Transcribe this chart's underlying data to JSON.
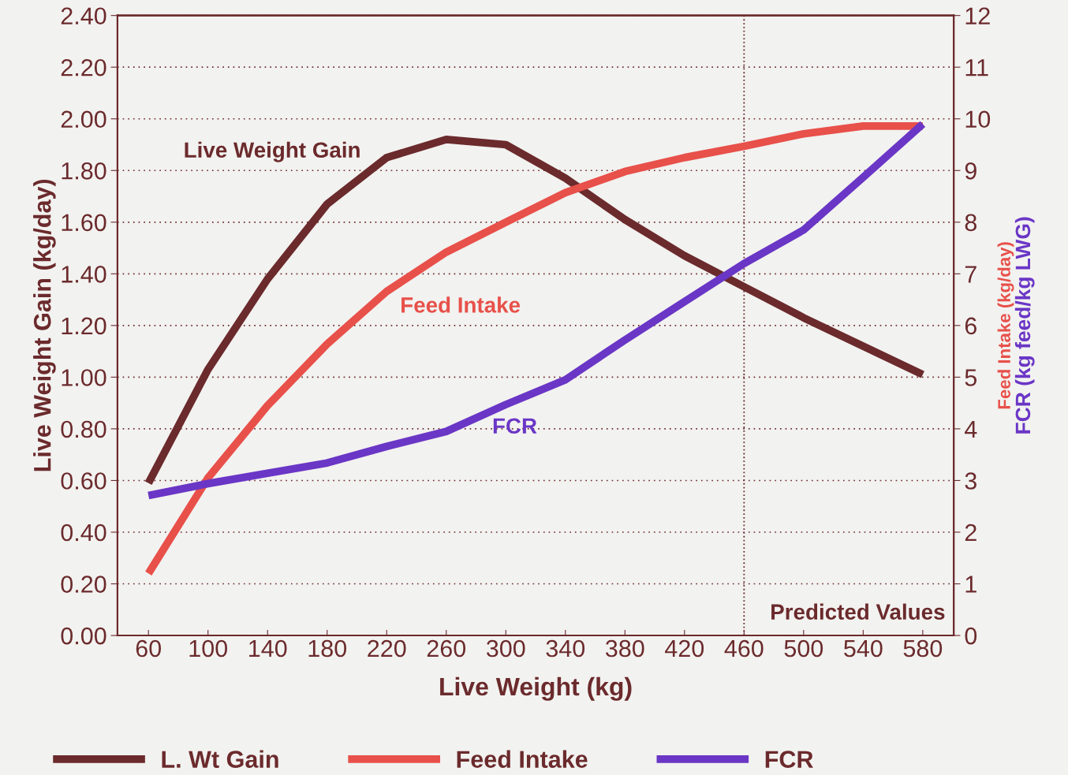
{
  "chart_data": {
    "type": "line",
    "xlabel": "Live Weight (kg)",
    "ylabel": "Live Weight Gain (kg/day)",
    "y2label": "Feed Intake (kg/day)",
    "categories": [
      "60",
      "100",
      "140",
      "180",
      "220",
      "260",
      "300",
      "340",
      "380",
      "420",
      "460",
      "500",
      "540",
      "580"
    ],
    "series": [
      {
        "name": "L. Wt Gain",
        "color": "#6b2a2c",
        "values": [
          0.59,
          1.03,
          1.38,
          1.67,
          1.85,
          1.92,
          1.9,
          1.77,
          1.61,
          1.47,
          1.35,
          1.23,
          1.12,
          1.01
        ]
      },
      {
        "name": "Feed Intake",
        "color": "#e8504a",
        "axis": "y2",
        "values": [
          1.2,
          3.05,
          4.45,
          5.64,
          6.66,
          7.42,
          8.0,
          8.57,
          8.98,
          9.25,
          9.47,
          9.71,
          9.86,
          9.86
        ]
      },
      {
        "name": "FCR",
        "color": "#6a36c6",
        "axis": "y2",
        "values": [
          2.71,
          2.94,
          3.14,
          3.34,
          3.66,
          3.95,
          4.47,
          4.95,
          5.72,
          6.46,
          7.2,
          7.85,
          8.87,
          9.9
        ]
      }
    ],
    "ylim": [
      0,
      2.4
    ],
    "yticks": [
      {
        "value": 0,
        "label": "0.00"
      },
      {
        "value": 0.2,
        "label": "0.20"
      },
      {
        "value": 0.4,
        "label": "0.40"
      },
      {
        "value": 0.6,
        "label": "0.60"
      },
      {
        "value": 0.8,
        "label": "0.80"
      },
      {
        "value": 1,
        "label": "1.00"
      },
      {
        "value": 1.2,
        "label": "1.20"
      },
      {
        "value": 1.4,
        "label": "1.40"
      },
      {
        "value": 1.6,
        "label": "1.60"
      },
      {
        "value": 1.8,
        "label": "1.80"
      },
      {
        "value": 2,
        "label": "2.00"
      },
      {
        "value": 2.2,
        "label": "2.20"
      },
      {
        "value": 2.4,
        "label": "2.40"
      }
    ],
    "y2lim": [
      0,
      12
    ],
    "y2ticks": [
      0,
      1,
      2,
      3,
      4,
      5,
      6,
      7,
      8,
      9,
      10,
      11,
      12
    ],
    "annotations": [
      "Live Weight Gain",
      "Feed Intake",
      "FCR",
      "Predicted Values",
      "FCR (kg feed/kg LWG)"
    ],
    "ref_lines": [
      {
        "axis": "x",
        "value": "460",
        "line_style": "dotted"
      }
    ],
    "grid": "y",
    "legend": "bottom",
    "line_style": "solid",
    "marker": "none"
  }
}
